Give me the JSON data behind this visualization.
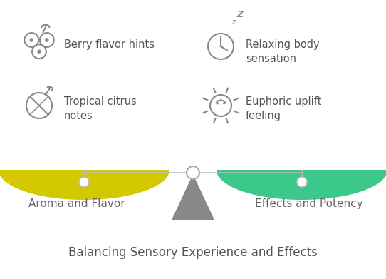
{
  "background_color": "#ffffff",
  "title": "Balancing Sensory Experience and Effects",
  "title_fontsize": 12,
  "title_color": "#555555",
  "left_label": "Aroma and Flavor",
  "right_label": "Effects and Potency",
  "label_fontsize": 11,
  "label_color": "#666666",
  "left_pan_color": "#d4c800",
  "right_pan_color": "#3cc88a",
  "beam_color": "#bbbbbb",
  "fulcrum_color": "#888888",
  "icon_color": "#888888",
  "item_text_color": "#555555",
  "item_fontsize": 10.5
}
